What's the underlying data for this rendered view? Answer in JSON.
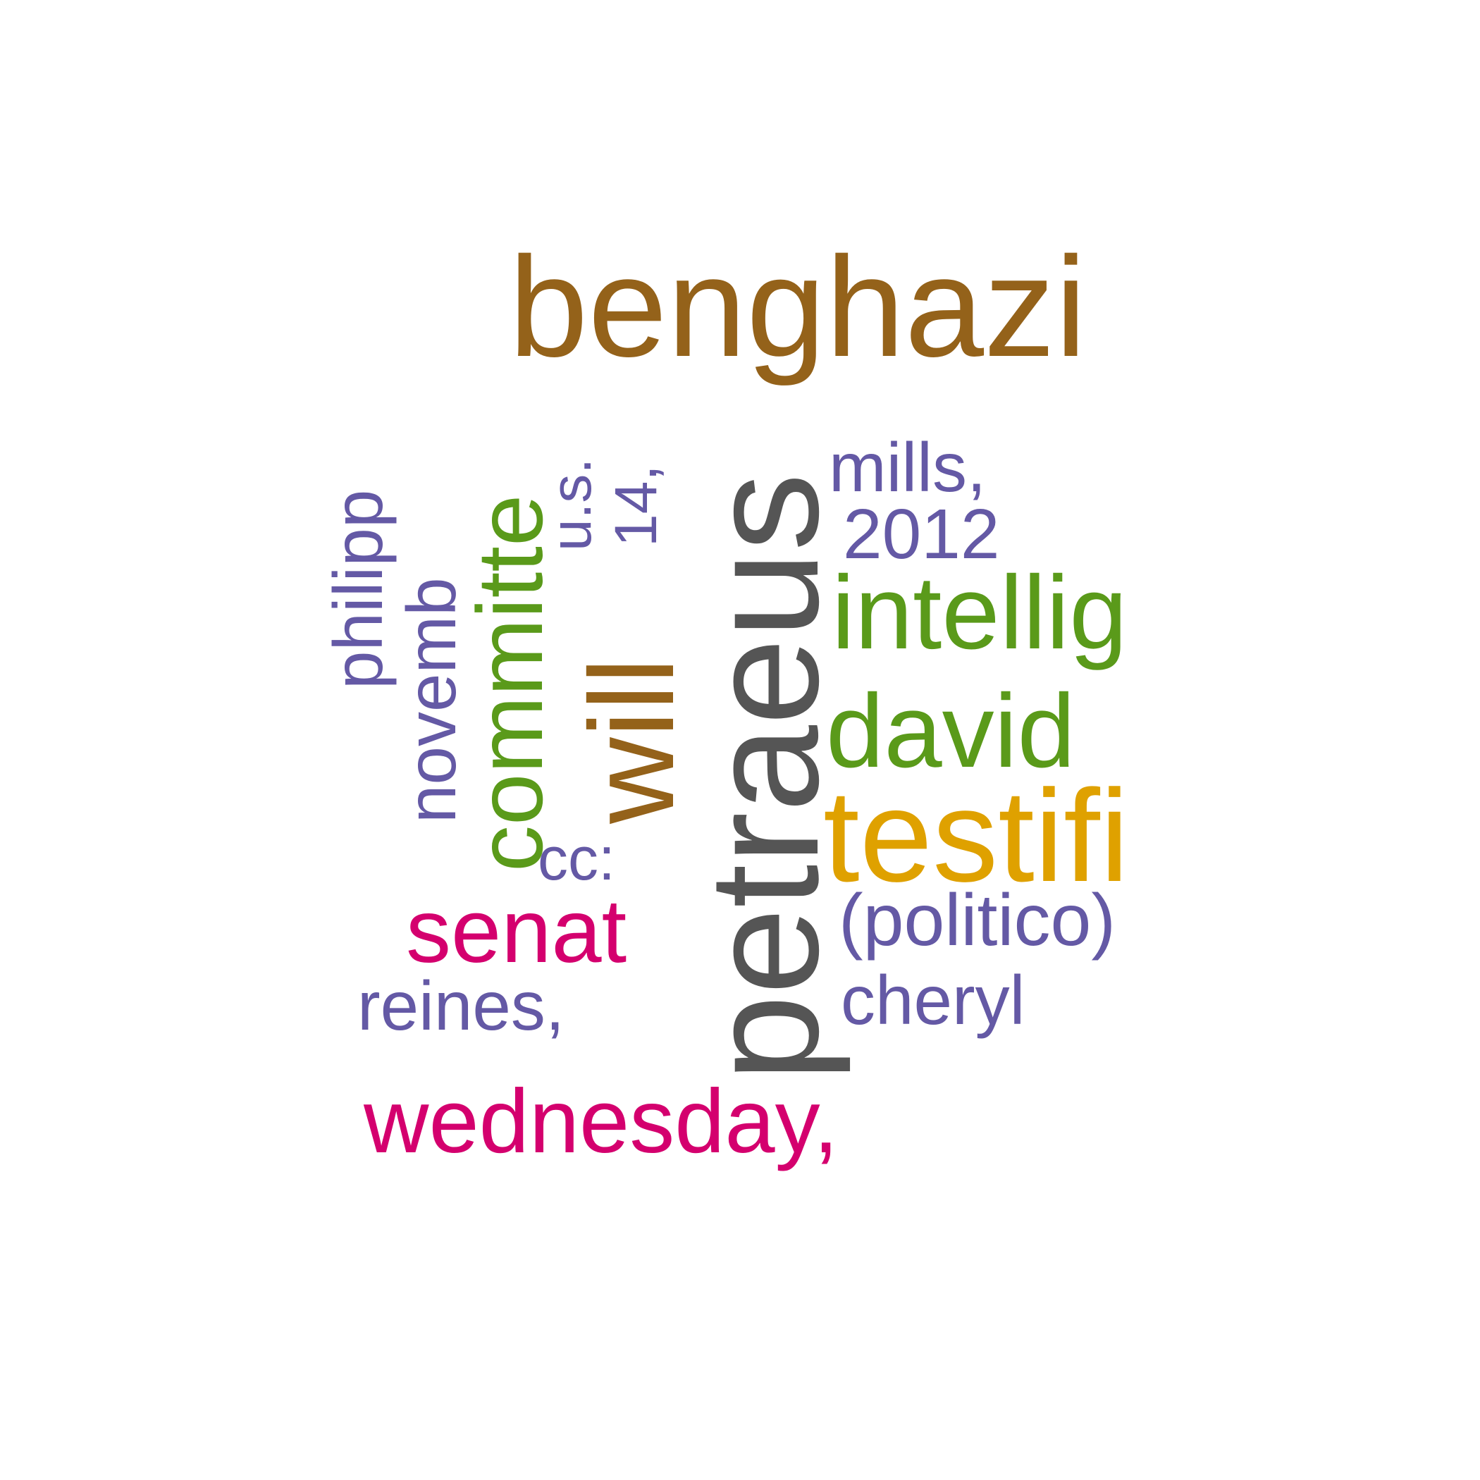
{
  "word_cloud": {
    "colors": {
      "brown": "#94621A",
      "gray": "#555555",
      "green": "#5A9A1A",
      "gold": "#DFA100",
      "magenta": "#D4006E",
      "purple": "#6459A5"
    },
    "words": {
      "benghazi": "benghazi",
      "petraeus": "petraeus",
      "will": "will",
      "committe": "committe",
      "novemb": "novemb",
      "philipp": "philipp",
      "us": "u.s.",
      "n14": "14,",
      "mills": "mills,",
      "y2012": "2012",
      "intellig": "intellig",
      "david": "david",
      "testifi": "testifi",
      "cc": "cc:",
      "senat": "senat",
      "politico": "(politico)",
      "cheryl": "cheryl",
      "reines": "reines,",
      "wednesday": "wednesday,"
    }
  }
}
